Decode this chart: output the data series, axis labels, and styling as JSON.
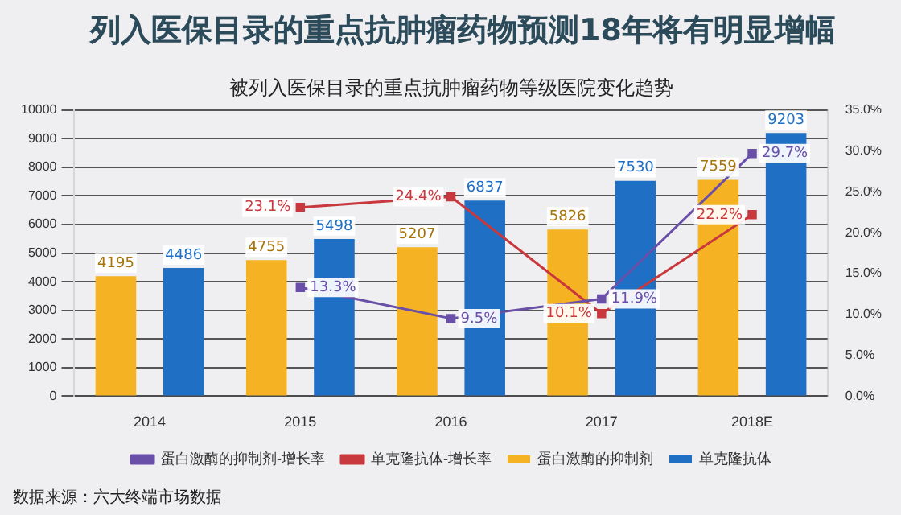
{
  "chart_data": {
    "type": "bar",
    "title": "列入医保目录的重点抗肿瘤药物预测18年将有明显增幅",
    "subtitle": "被列入医保目录的重点抗肿瘤药物等级医院变化趋势",
    "categories": [
      "2014",
      "2015",
      "2016",
      "2017",
      "2018E"
    ],
    "series": [
      {
        "name": "蛋白激酶的抑制剂",
        "color": "#f5b324",
        "values": [
          4195,
          4755,
          5207,
          5826,
          7559
        ],
        "value_labels": [
          "4195",
          "4755",
          "5207",
          "5826",
          "7559"
        ]
      },
      {
        "name": "单克隆抗体",
        "color": "#1f6fc4",
        "values": [
          4486,
          5498,
          6837,
          7530,
          9203
        ],
        "value_labels": [
          "4486",
          "5498",
          "6837",
          "7530",
          "9203"
        ]
      },
      {
        "name": "蛋白激酶的抑制剂-增长率",
        "type": "line",
        "axis": "y2",
        "color": "#6a4fa8",
        "values": [
          null,
          13.3,
          9.5,
          11.9,
          29.7
        ],
        "value_labels": [
          null,
          "13.3%",
          "9.5%",
          "11.9%",
          "29.7%"
        ]
      },
      {
        "name": "单克隆抗体-增长率",
        "type": "line",
        "axis": "y2",
        "color": "#c8383c",
        "values": [
          null,
          23.1,
          24.4,
          10.1,
          22.2
        ],
        "value_labels": [
          null,
          "23.1%",
          "24.4%",
          "10.1%",
          "22.2%"
        ]
      }
    ],
    "ylim": [
      0,
      10000
    ],
    "yticks": [
      0,
      1000,
      2000,
      3000,
      4000,
      5000,
      6000,
      7000,
      8000,
      9000,
      10000
    ],
    "y2lim": [
      0,
      35
    ],
    "y2ticks": [
      {
        "value": 0,
        "label": "0.0%"
      },
      {
        "value": 5,
        "label": "5.0%"
      },
      {
        "value": 10,
        "label": "10.0%"
      },
      {
        "value": 15,
        "label": "15.0%"
      },
      {
        "value": 20,
        "label": "20.0%"
      },
      {
        "value": 25,
        "label": "25.0%"
      },
      {
        "value": 30,
        "label": "30.0%"
      },
      {
        "value": 35,
        "label": "35.0%"
      }
    ],
    "grid": "y",
    "legend": "bottom",
    "marker": "square",
    "annotations": [
      "数据来源：六大终端市场数据"
    ]
  }
}
